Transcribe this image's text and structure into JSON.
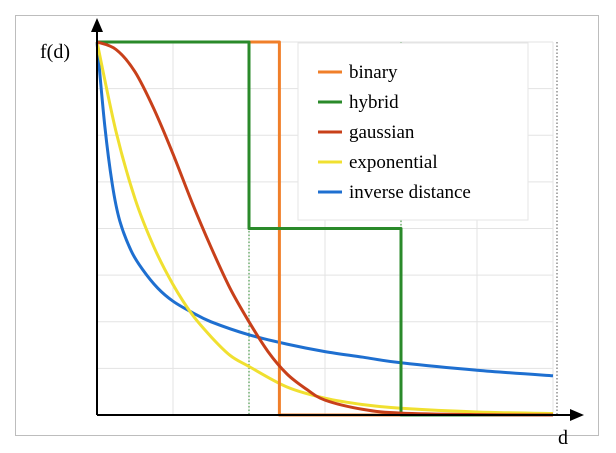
{
  "chart_data": {
    "type": "line",
    "title": "",
    "xlabel": "d",
    "ylabel": "f(d)",
    "xlim": [
      0,
      6
    ],
    "ylim": [
      0,
      1
    ],
    "grid": true,
    "legend_position": "top-right",
    "series": [
      {
        "name": "binary",
        "color": "#f07f2a",
        "points": [
          [
            0,
            1
          ],
          [
            2.4,
            1
          ],
          [
            2.4,
            0
          ],
          [
            6,
            0
          ]
        ]
      },
      {
        "name": "hybrid",
        "color": "#2a8a2a",
        "points": [
          [
            0,
            1
          ],
          [
            2.0,
            1
          ],
          [
            2.0,
            0.5
          ],
          [
            4.0,
            0.5
          ],
          [
            4.0,
            0
          ],
          [
            6,
            0
          ]
        ]
      },
      {
        "name": "gaussian",
        "color": "#c8401a",
        "points": [
          [
            0,
            1
          ],
          [
            0.25,
            0.98
          ],
          [
            0.5,
            0.92
          ],
          [
            0.75,
            0.82
          ],
          [
            1.0,
            0.7
          ],
          [
            1.25,
            0.57
          ],
          [
            1.5,
            0.45
          ],
          [
            1.75,
            0.34
          ],
          [
            2.0,
            0.25
          ],
          [
            2.25,
            0.17
          ],
          [
            2.5,
            0.11
          ],
          [
            2.75,
            0.07
          ],
          [
            3.0,
            0.04
          ],
          [
            3.5,
            0.015
          ],
          [
            4.0,
            0.005
          ],
          [
            5.0,
            0.001
          ],
          [
            6,
            0
          ]
        ]
      },
      {
        "name": "exponential",
        "color": "#f0e030",
        "points": [
          [
            0,
            1
          ],
          [
            0.25,
            0.76
          ],
          [
            0.5,
            0.58
          ],
          [
            0.75,
            0.45
          ],
          [
            1.0,
            0.35
          ],
          [
            1.25,
            0.27
          ],
          [
            1.5,
            0.21
          ],
          [
            1.75,
            0.16
          ],
          [
            2.0,
            0.13
          ],
          [
            2.5,
            0.075
          ],
          [
            3.0,
            0.045
          ],
          [
            3.5,
            0.028
          ],
          [
            4.0,
            0.018
          ],
          [
            5.0,
            0.008
          ],
          [
            6,
            0.004
          ]
        ]
      },
      {
        "name": "inverse distance",
        "color": "#1e6fd0",
        "points": [
          [
            0,
            1
          ],
          [
            0.1,
            0.78
          ],
          [
            0.2,
            0.62
          ],
          [
            0.3,
            0.52
          ],
          [
            0.45,
            0.44
          ],
          [
            0.6,
            0.39
          ],
          [
            0.8,
            0.34
          ],
          [
            1.0,
            0.305
          ],
          [
            1.25,
            0.275
          ],
          [
            1.5,
            0.25
          ],
          [
            2.0,
            0.215
          ],
          [
            2.5,
            0.19
          ],
          [
            3.0,
            0.17
          ],
          [
            3.5,
            0.155
          ],
          [
            4.0,
            0.14
          ],
          [
            5.0,
            0.12
          ],
          [
            6,
            0.105
          ]
        ]
      }
    ]
  }
}
